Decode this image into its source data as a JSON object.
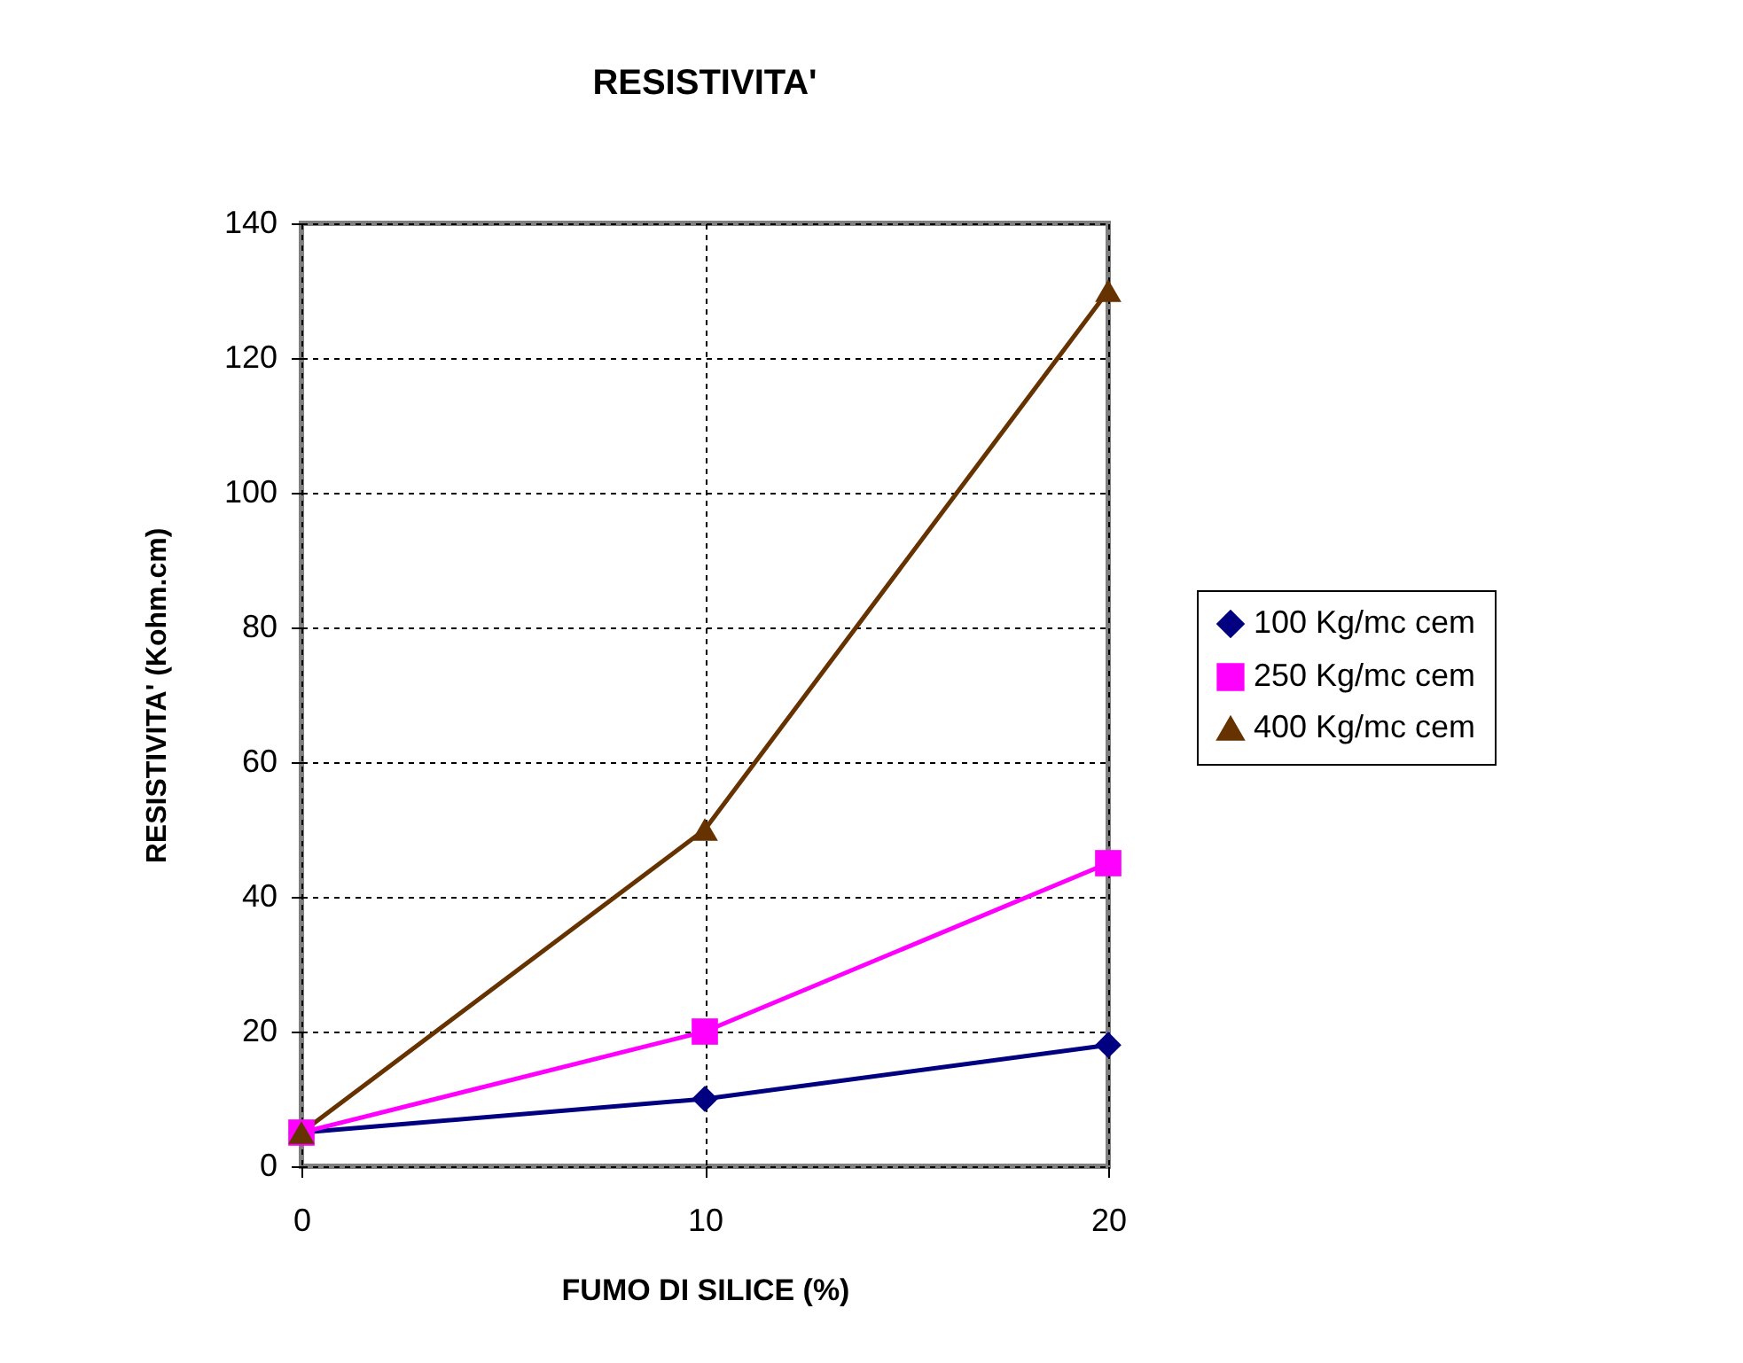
{
  "chart_data": {
    "type": "line",
    "title": "RESISTIVITA'",
    "xlabel": "FUMO DI SILICE (%)",
    "ylabel": "RESISTIVITA' (Kohm.cm)",
    "x": [
      0,
      10,
      20
    ],
    "series": [
      {
        "name": "100 Kg/mc cem",
        "color": "#000080",
        "marker": "diamond",
        "values": [
          5,
          10,
          18
        ]
      },
      {
        "name": "250 Kg/mc cem",
        "color": "#ff00ff",
        "marker": "square",
        "values": [
          5,
          20,
          45
        ]
      },
      {
        "name": "400 Kg/mc cem",
        "color": "#663300",
        "marker": "triangle",
        "values": [
          5,
          50,
          130
        ]
      }
    ],
    "xlim": [
      0,
      20
    ],
    "xticks": [
      0,
      10,
      20
    ],
    "ylim": [
      0,
      140
    ],
    "yticks": [
      0,
      20,
      40,
      60,
      80,
      100,
      120,
      140
    ],
    "grid": true,
    "legend": "right"
  }
}
